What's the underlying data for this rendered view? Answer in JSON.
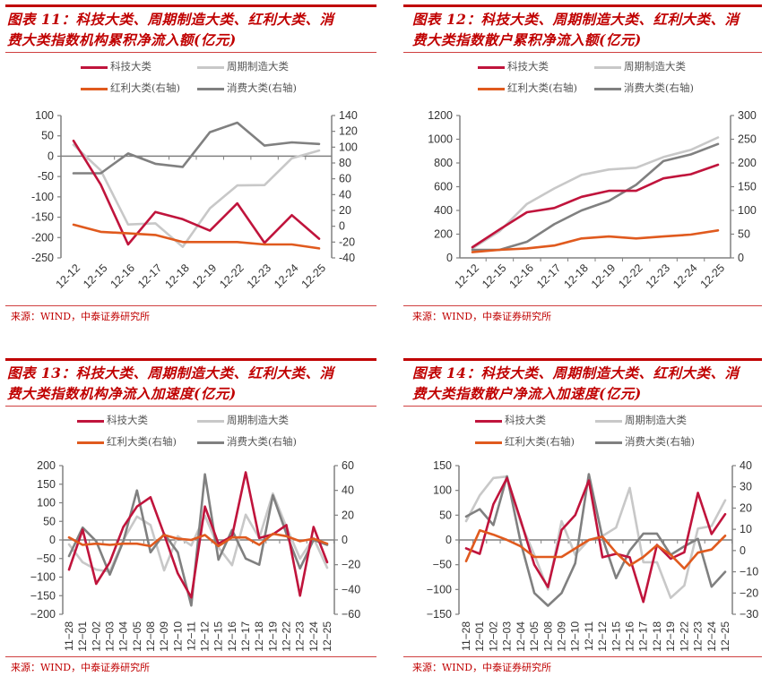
{
  "colors": {
    "tech": "#c0143c",
    "cycle": "#c8c8c8",
    "dividend": "#e05a1e",
    "consumer": "#808080",
    "title": "#c00000",
    "axis": "#808080"
  },
  "legend_labels": {
    "tech": "科技大类",
    "cycle": "周期制造大类",
    "dividend": "红利大类(右轴)",
    "consumer": "消费大类(右轴)"
  },
  "source": "来源：WIND，中泰证券研究所",
  "panels": [
    {
      "title_line1": "图表 11：科技大类、周期制造大类、红利大类、消",
      "title_line2": "费大类指数机构累积净流入额(亿元)"
    },
    {
      "title_line1": "图表 12：科技大类、周期制造大类、红利大类、消",
      "title_line2": "费大类指数散户累积净流入额(亿元)"
    },
    {
      "title_line1": "图表 13：科技大类、周期制造大类、红利大类、消",
      "title_line2": "费大类指数机构净流入加速度(亿元)"
    },
    {
      "title_line1": "图表 14：科技大类、周期制造大类、红利大类、消",
      "title_line2": "费大类指数散户净流入加速度(亿元)"
    }
  ],
  "chart_data": [
    {
      "type": "line",
      "title": "科技大类、周期制造大类、红利大类、消费大类指数机构累积净流入额(亿元)",
      "x": [
        "12-12",
        "12-15",
        "12-16",
        "12-17",
        "12-18",
        "12-19",
        "12-22",
        "12-23",
        "12-24",
        "12-25"
      ],
      "x_label_style": "rotated",
      "ylim_left": [
        -250,
        100
      ],
      "yticks_left": [
        100,
        50,
        0,
        -50,
        -100,
        -150,
        -200,
        -250
      ],
      "ylim_right": [
        -40,
        140
      ],
      "yticks_right": [
        140,
        120,
        100,
        80,
        60,
        40,
        20,
        0,
        -20,
        -40
      ],
      "zero_line": true,
      "series": [
        {
          "key": "tech",
          "name": "科技大类",
          "axis": "left",
          "values": [
            38,
            -70,
            -217,
            -137,
            -155,
            -183,
            -116,
            -213,
            -145,
            -203
          ]
        },
        {
          "key": "cycle",
          "name": "周期制造大类",
          "axis": "left",
          "values": [
            28,
            -35,
            -168,
            -165,
            -223,
            -128,
            -72,
            -71,
            -5,
            14
          ]
        },
        {
          "key": "dividend",
          "name": "红利大类(右轴)",
          "axis": "right",
          "values": [
            2,
            -7,
            -9,
            -11,
            -20,
            -20,
            -20,
            -23,
            -23,
            -28
          ]
        },
        {
          "key": "consumer",
          "name": "消费大类(右轴)",
          "axis": "right",
          "values": [
            67,
            67,
            92,
            79,
            75,
            119,
            131,
            102,
            106,
            104
          ]
        }
      ]
    },
    {
      "type": "line",
      "title": "科技大类、周期制造大类、红利大类、消费大类指数散户累积净流入额(亿元)",
      "x": [
        "12-12",
        "12-15",
        "12-16",
        "12-17",
        "12-18",
        "12-19",
        "12-22",
        "12-23",
        "12-24",
        "12-25"
      ],
      "x_label_style": "rotated",
      "ylim_left": [
        0,
        1200
      ],
      "yticks_left": [
        1200,
        1000,
        800,
        600,
        400,
        200,
        0
      ],
      "ylim_right": [
        0,
        300
      ],
      "yticks_right": [
        300,
        250,
        200,
        150,
        100,
        50,
        0
      ],
      "zero_line": false,
      "series": [
        {
          "key": "tech",
          "name": "科技大类",
          "axis": "left",
          "values": [
            90,
            240,
            385,
            420,
            515,
            565,
            565,
            670,
            705,
            785
          ]
        },
        {
          "key": "cycle",
          "name": "周期制造大类",
          "axis": "left",
          "values": [
            80,
            225,
            455,
            585,
            700,
            745,
            760,
            850,
            910,
            1015
          ]
        },
        {
          "key": "dividend",
          "name": "红利大类(右轴)",
          "axis": "right",
          "values": [
            12,
            17,
            20,
            26,
            41,
            45,
            41,
            45,
            49,
            58
          ]
        },
        {
          "key": "consumer",
          "name": "消费大类(右轴)",
          "axis": "right",
          "values": [
            17,
            17,
            34,
            71,
            100,
            120,
            154,
            204,
            218,
            240
          ]
        }
      ]
    },
    {
      "type": "line",
      "title": "科技大类、周期制造大类、红利大类、消费大类指数机构净流入加速度(亿元)",
      "x": [
        "11-28",
        "12-01",
        "12-02",
        "12-03",
        "12-04",
        "12-05",
        "12-08",
        "12-09",
        "12-10",
        "12-11",
        "12-12",
        "12-15",
        "12-16",
        "12-17",
        "12-18",
        "12-19",
        "12-22",
        "12-23",
        "12-24",
        "12-25"
      ],
      "x_label_style": "vertical",
      "ylim_left": [
        -200,
        200
      ],
      "yticks_left": [
        200,
        150,
        100,
        50,
        0,
        -50,
        -100,
        -150,
        -200
      ],
      "ylim_right": [
        -60,
        60
      ],
      "yticks_right": [
        60,
        40,
        20,
        0,
        -20,
        -40,
        -60
      ],
      "zero_line": true,
      "series": [
        {
          "key": "tech",
          "name": "科技大类",
          "axis": "left",
          "values": [
            -80,
            28,
            -118,
            -60,
            35,
            90,
            115,
            15,
            -90,
            -155,
            90,
            -10,
            10,
            182,
            5,
            15,
            40,
            -150,
            35,
            -60
          ]
        },
        {
          "key": "cycle",
          "name": "周期制造大类",
          "axis": "left",
          "values": [
            -12,
            -60,
            -80,
            -85,
            0,
            63,
            40,
            -82,
            10,
            -15,
            65,
            -20,
            -68,
            68,
            5,
            125,
            35,
            -50,
            5,
            -75
          ]
        },
        {
          "key": "dividend",
          "name": "红利大类(右轴)",
          "axis": "right",
          "values": [
            2,
            -4,
            -3,
            -4,
            -3,
            -3,
            -5,
            4,
            1,
            0,
            4,
            -5,
            2,
            2,
            -4,
            5,
            3,
            -1,
            1,
            -3
          ]
        },
        {
          "key": "consumer",
          "name": "消费大类(右轴)",
          "axis": "right",
          "values": [
            -13,
            10,
            -1,
            -28,
            -1,
            40,
            -10,
            5,
            -10,
            -53,
            53,
            -16,
            8,
            -15,
            -20,
            36,
            5,
            -23,
            0,
            -4
          ]
        }
      ]
    },
    {
      "type": "line",
      "title": "科技大类、周期制造大类、红利大类、消费大类指数散户净流入加速度(亿元)",
      "x": [
        "11-28",
        "12-01",
        "12-02",
        "12-03",
        "12-04",
        "12-05",
        "12-08",
        "12-09",
        "12-10",
        "12-11",
        "12-12",
        "12-15",
        "12-16",
        "12-17",
        "12-18",
        "12-19",
        "12-22",
        "12-23",
        "12-24",
        "12-25"
      ],
      "x_label_style": "vertical",
      "ylim_left": [
        -150,
        150
      ],
      "yticks_left": [
        150,
        100,
        50,
        0,
        -50,
        -100,
        -150
      ],
      "ylim_right": [
        -30,
        40
      ],
      "yticks_right": [
        40,
        30,
        20,
        10,
        0,
        -10,
        -20,
        -30
      ],
      "zero_line": true,
      "series": [
        {
          "key": "tech",
          "name": "科技大类",
          "axis": "left",
          "values": [
            -17,
            -28,
            72,
            125,
            40,
            -50,
            -95,
            20,
            50,
            120,
            -35,
            -28,
            -35,
            -125,
            -10,
            -38,
            -25,
            95,
            12,
            52
          ]
        },
        {
          "key": "cycle",
          "name": "周期制造大类",
          "axis": "left",
          "values": [
            38,
            90,
            125,
            128,
            35,
            -30,
            -100,
            38,
            -30,
            0,
            8,
            25,
            105,
            -45,
            -45,
            -117,
            -92,
            23,
            28,
            80
          ]
        },
        {
          "key": "dividend",
          "name": "红利大类(右轴)",
          "axis": "right",
          "values": [
            -5,
            9.5,
            7.5,
            5,
            2,
            -3,
            -3,
            -3,
            1,
            5,
            6.5,
            -1,
            -7,
            -3,
            2.5,
            -2,
            -8.5,
            -1,
            0.5,
            7
          ]
        },
        {
          "key": "consumer",
          "name": "消费大类(右轴)",
          "axis": "right",
          "values": [
            16,
            19.5,
            12,
            35,
            4,
            -20,
            -26,
            -20,
            -6,
            36,
            6,
            -13,
            0,
            8,
            8,
            -2,
            2,
            5.5,
            -17,
            -10
          ]
        }
      ]
    }
  ]
}
